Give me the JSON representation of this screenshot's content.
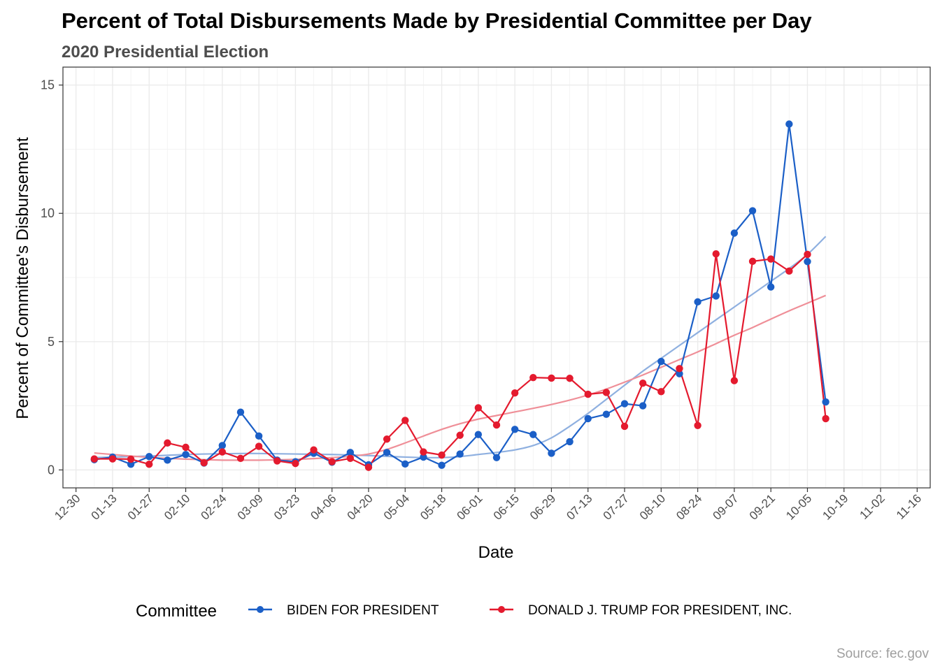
{
  "chart_data": {
    "type": "line",
    "title": "Percent of Total Disbursements Made by Presidential Committee per Day",
    "subtitle": "2020 Presidential Election",
    "xlabel": "Date",
    "ylabel": "Percent of Committee's Disbursement",
    "caption": "Source: fec.gov",
    "x_range": [
      "2019-12-25",
      "2020-11-21"
    ],
    "ylim": [
      -0.7,
      15.7
    ],
    "y_ticks": [
      0,
      5,
      10,
      15
    ],
    "x_ticks": [
      {
        "date": "2019-12-30",
        "label": "12-30"
      },
      {
        "date": "2020-01-13",
        "label": "01-13"
      },
      {
        "date": "2020-01-27",
        "label": "01-27"
      },
      {
        "date": "2020-02-10",
        "label": "02-10"
      },
      {
        "date": "2020-02-24",
        "label": "02-24"
      },
      {
        "date": "2020-03-09",
        "label": "03-09"
      },
      {
        "date": "2020-03-23",
        "label": "03-23"
      },
      {
        "date": "2020-04-06",
        "label": "04-06"
      },
      {
        "date": "2020-04-20",
        "label": "04-20"
      },
      {
        "date": "2020-05-04",
        "label": "05-04"
      },
      {
        "date": "2020-05-18",
        "label": "05-18"
      },
      {
        "date": "2020-06-01",
        "label": "06-01"
      },
      {
        "date": "2020-06-15",
        "label": "06-15"
      },
      {
        "date": "2020-06-29",
        "label": "06-29"
      },
      {
        "date": "2020-07-13",
        "label": "07-13"
      },
      {
        "date": "2020-07-27",
        "label": "07-27"
      },
      {
        "date": "2020-08-10",
        "label": "08-10"
      },
      {
        "date": "2020-08-24",
        "label": "08-24"
      },
      {
        "date": "2020-09-07",
        "label": "09-07"
      },
      {
        "date": "2020-09-21",
        "label": "09-21"
      },
      {
        "date": "2020-10-05",
        "label": "10-05"
      },
      {
        "date": "2020-10-19",
        "label": "10-19"
      },
      {
        "date": "2020-11-02",
        "label": "11-02"
      },
      {
        "date": "2020-11-16",
        "label": "11-16"
      }
    ],
    "grid": true,
    "legend": {
      "title": "Committee",
      "position": "bottom"
    },
    "x": [
      "2020-01-06",
      "2020-01-13",
      "2020-01-20",
      "2020-01-27",
      "2020-02-03",
      "2020-02-10",
      "2020-02-17",
      "2020-02-24",
      "2020-03-02",
      "2020-03-09",
      "2020-03-16",
      "2020-03-23",
      "2020-03-30",
      "2020-04-06",
      "2020-04-13",
      "2020-04-20",
      "2020-04-27",
      "2020-05-04",
      "2020-05-11",
      "2020-05-18",
      "2020-05-25",
      "2020-06-01",
      "2020-06-08",
      "2020-06-15",
      "2020-06-22",
      "2020-06-29",
      "2020-07-06",
      "2020-07-13",
      "2020-07-20",
      "2020-07-27",
      "2020-08-03",
      "2020-08-10",
      "2020-08-17",
      "2020-08-24",
      "2020-08-31",
      "2020-09-07",
      "2020-09-14",
      "2020-09-21",
      "2020-09-28",
      "2020-10-05",
      "2020-10-12"
    ],
    "series": [
      {
        "name": "BIDEN FOR PRESIDENT",
        "color": "#1b5fc7",
        "trend_color": "#8fb0e0",
        "values": [
          0.4,
          0.5,
          0.22,
          0.52,
          0.38,
          0.6,
          0.27,
          0.95,
          2.25,
          1.32,
          0.38,
          0.32,
          0.65,
          0.3,
          0.68,
          0.2,
          0.68,
          0.23,
          0.5,
          0.18,
          0.62,
          1.38,
          0.48,
          1.58,
          1.38,
          0.65,
          1.1,
          2.0,
          2.17,
          2.58,
          2.5,
          4.23,
          3.75,
          6.55,
          6.78,
          9.23,
          10.1,
          7.13,
          13.48,
          8.12,
          2.65
        ],
        "trend": [
          0.48,
          0.5,
          0.52,
          0.54,
          0.57,
          0.6,
          0.62,
          0.63,
          0.64,
          0.64,
          0.63,
          0.62,
          0.61,
          0.6,
          0.58,
          0.56,
          0.53,
          0.5,
          0.48,
          0.48,
          0.52,
          0.6,
          0.68,
          0.78,
          0.95,
          1.25,
          1.7,
          2.2,
          2.75,
          3.3,
          3.85,
          4.35,
          4.85,
          5.35,
          5.85,
          6.35,
          6.85,
          7.35,
          7.85,
          8.4,
          9.1
        ]
      },
      {
        "name": "DONALD J. TRUMP FOR PRESIDENT, INC.",
        "color": "#e41a2e",
        "trend_color": "#ef8f98",
        "values": [
          0.43,
          0.43,
          0.42,
          0.22,
          1.05,
          0.88,
          0.28,
          0.7,
          0.45,
          0.92,
          0.35,
          0.25,
          0.78,
          0.32,
          0.45,
          0.1,
          1.2,
          1.93,
          0.7,
          0.58,
          1.35,
          2.42,
          1.75,
          3.0,
          3.6,
          3.58,
          3.57,
          2.95,
          3.02,
          1.7,
          3.38,
          3.05,
          3.95,
          1.73,
          8.42,
          3.48,
          8.13,
          8.22,
          7.75,
          8.4,
          2.0
        ],
        "trend": [
          0.66,
          0.6,
          0.54,
          0.49,
          0.45,
          0.42,
          0.4,
          0.38,
          0.38,
          0.38,
          0.39,
          0.41,
          0.44,
          0.48,
          0.53,
          0.62,
          0.8,
          1.05,
          1.32,
          1.58,
          1.8,
          1.98,
          2.12,
          2.26,
          2.4,
          2.55,
          2.72,
          2.92,
          3.15,
          3.42,
          3.7,
          4.0,
          4.3,
          4.6,
          4.92,
          5.25,
          5.55,
          5.88,
          6.2,
          6.5,
          6.8
        ]
      }
    ]
  }
}
